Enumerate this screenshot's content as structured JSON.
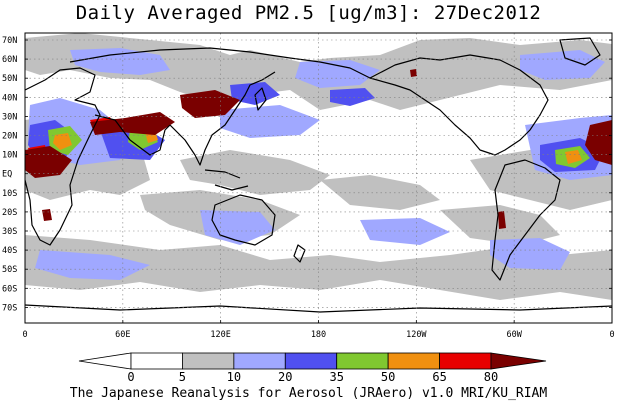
{
  "title": "Daily Averaged PM2.5 [ug/m3]: 27Dec2012",
  "footer": "The Japanese Reanalysis for Aerosol (JRAero) v1.0 MRI/KU_RIAM",
  "map": {
    "lon_labels": [
      "0",
      "60E",
      "120E",
      "180",
      "120W",
      "60W",
      "0"
    ],
    "lat_labels": [
      "70N",
      "60N",
      "50N",
      "40N",
      "30N",
      "20N",
      "10N",
      "EQ",
      "10S",
      "20S",
      "30S",
      "40S",
      "50S",
      "60S",
      "70S"
    ]
  },
  "colorbar": {
    "labels": [
      "0",
      "5",
      "10",
      "20",
      "35",
      "50",
      "65",
      "80"
    ],
    "colors": [
      "#ffffff",
      "#c0c0c0",
      "#a0a8ff",
      "#5050f0",
      "#80c830",
      "#f09010",
      "#e80000",
      "#7a0000"
    ]
  },
  "palette": {
    "grid": "#808080",
    "coast": "#000000",
    "land_gray": "#c0c0c0",
    "light_blue": "#a0a8ff",
    "blue": "#5050f0",
    "green": "#80c830",
    "orange": "#f09010",
    "red": "#e80000",
    "dark_red": "#7a0000"
  }
}
